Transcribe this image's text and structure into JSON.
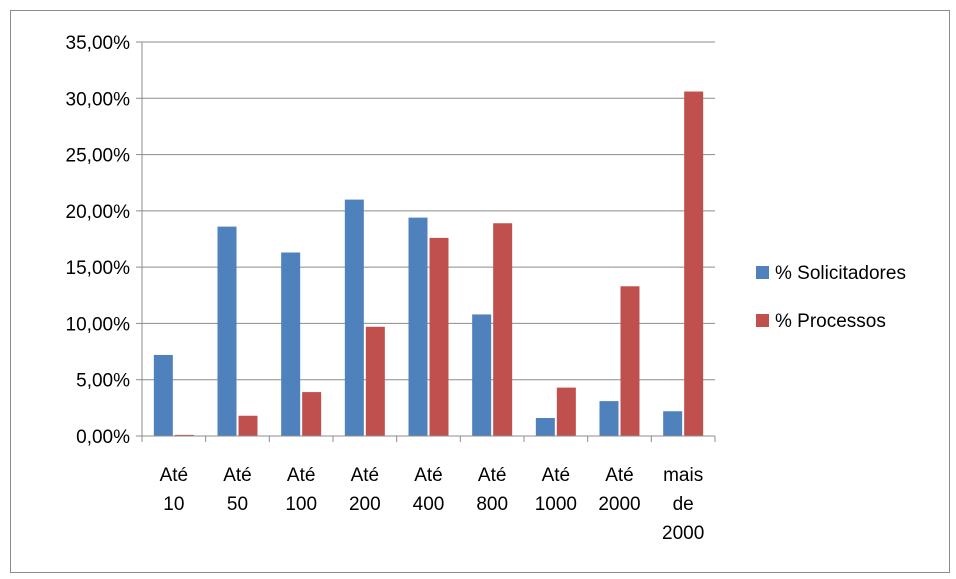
{
  "chart_data": {
    "type": "bar",
    "categories": [
      [
        "Até",
        "10"
      ],
      [
        "Até",
        "50"
      ],
      [
        "Até",
        "100"
      ],
      [
        "Até",
        "200"
      ],
      [
        "Até",
        "400"
      ],
      [
        "Até",
        "800"
      ],
      [
        "Até",
        "1000"
      ],
      [
        "Até",
        "2000"
      ],
      [
        "mais",
        "de",
        "2000"
      ]
    ],
    "series": [
      {
        "name": "% Solicitadores",
        "color": "#4f81bd",
        "values": [
          7.2,
          18.6,
          16.3,
          21.0,
          19.4,
          10.8,
          1.6,
          3.1,
          2.2
        ]
      },
      {
        "name": "% Processos",
        "color": "#c0504d",
        "values": [
          0.1,
          1.8,
          3.9,
          9.7,
          17.6,
          18.9,
          4.3,
          13.3,
          30.6
        ]
      }
    ],
    "y_ticks": [
      "0,00%",
      "5,00%",
      "10,00%",
      "15,00%",
      "20,00%",
      "25,00%",
      "30,00%",
      "35,00%"
    ],
    "ylim": [
      0,
      35
    ],
    "grid": true,
    "legend": "right"
  }
}
